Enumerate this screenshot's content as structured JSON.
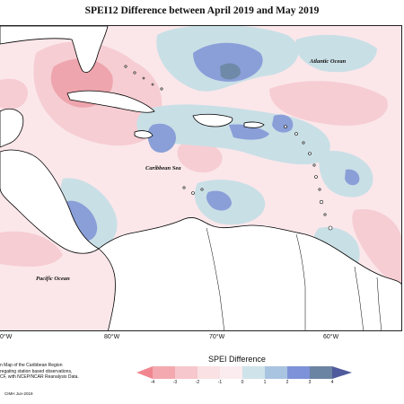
{
  "title": "SPEI12 Difference between April 2019 and May 2019",
  "map": {
    "ocean_labels": {
      "atlantic": "Atlantic Ocean",
      "caribbean": "Caribbean Sea",
      "pacific": "Pacific Ocean"
    },
    "longitude_ticks": [
      "0°W",
      "80°W",
      "70°W",
      "60°W"
    ],
    "colors": {
      "land": "#ffffff",
      "coast": "#000000",
      "neutral_pale_pink": "#fbe7ea",
      "light_pink": "#f6cdd3",
      "pink": "#eea5ad",
      "light_blue": "#c9dfe6",
      "mid_blue": "#8a9fd8",
      "steel_blue": "#6f8aa8"
    }
  },
  "legend": {
    "title": "SPEI Difference",
    "ticks": [
      "-4",
      "-3",
      "-2",
      "-1",
      "0",
      "1",
      "2",
      "3",
      "4"
    ],
    "colors": [
      "#f0868f",
      "#f4a9b0",
      "#f6c7cc",
      "#f9e1e4",
      "#cfe3ea",
      "#a9c4e0",
      "#7d92d8",
      "#6c84a3",
      "#4f5b9c"
    ]
  },
  "notes": [
    "n Map of the Caribbean Region",
    "regating station based observations,",
    "CF, with NCEP/NCAR Reanalysis Data."
  ],
  "credit": "CIMH Jun-2019"
}
